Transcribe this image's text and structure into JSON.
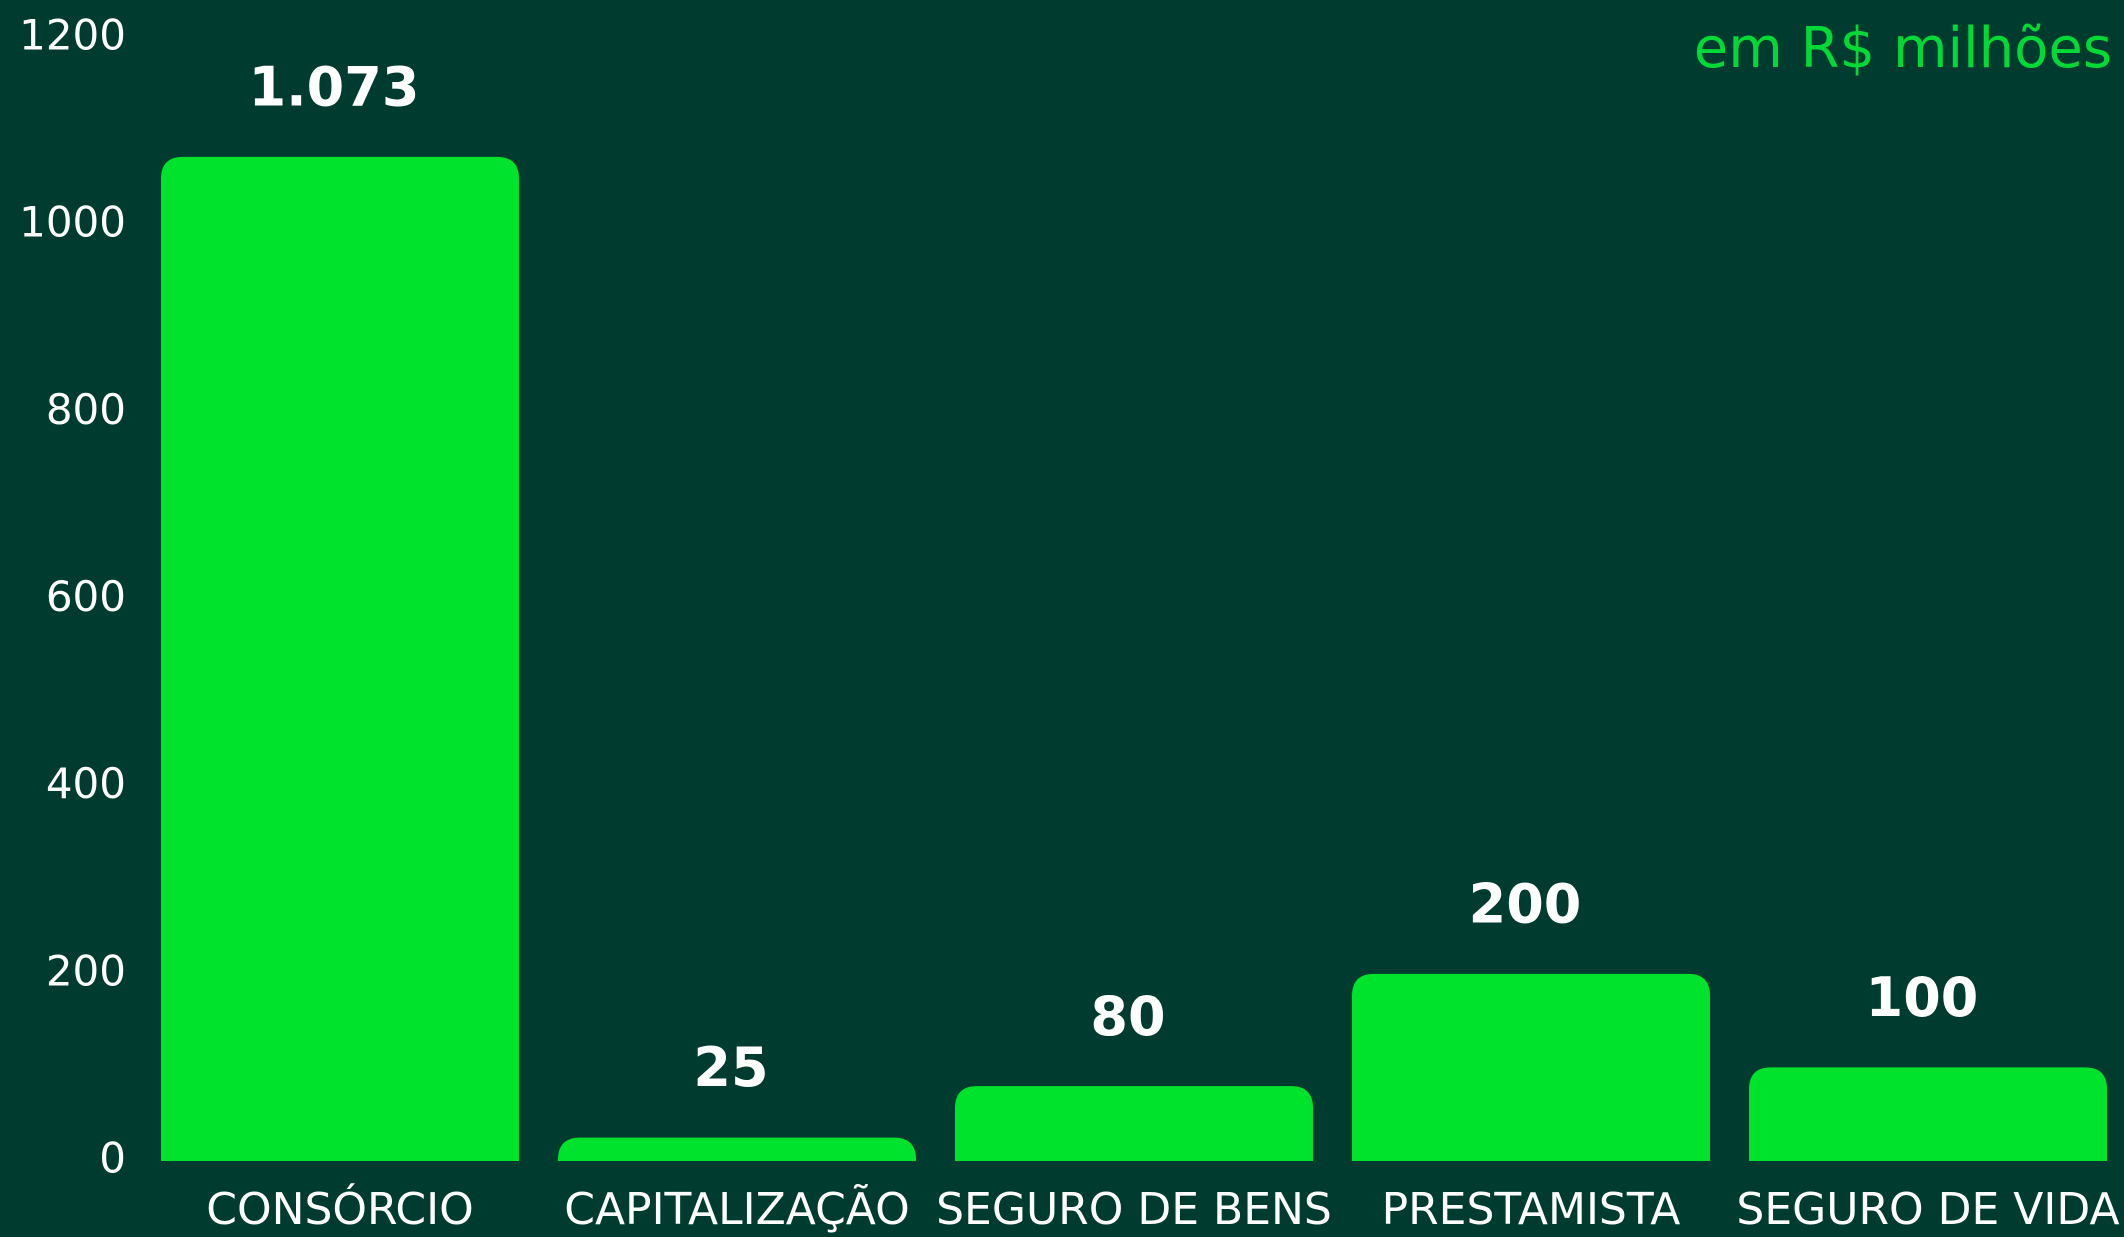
{
  "chart_data": {
    "type": "bar",
    "subtitle": "em R$ milhões",
    "categories": [
      "CONSÓRCIO",
      "CAPITALIZAÇÃO",
      "SEGURO DE BENS",
      "PRESTAMISTA",
      "SEGURO DE VIDA"
    ],
    "values": [
      1073,
      25,
      80,
      200,
      100
    ],
    "value_labels": [
      "1.073",
      "25",
      "80",
      "200",
      "100"
    ],
    "color": "#00e32c",
    "ylim": [
      0,
      1200
    ],
    "yticks": [
      0,
      200,
      400,
      600,
      800,
      1000,
      1200
    ],
    "grid": false
  }
}
